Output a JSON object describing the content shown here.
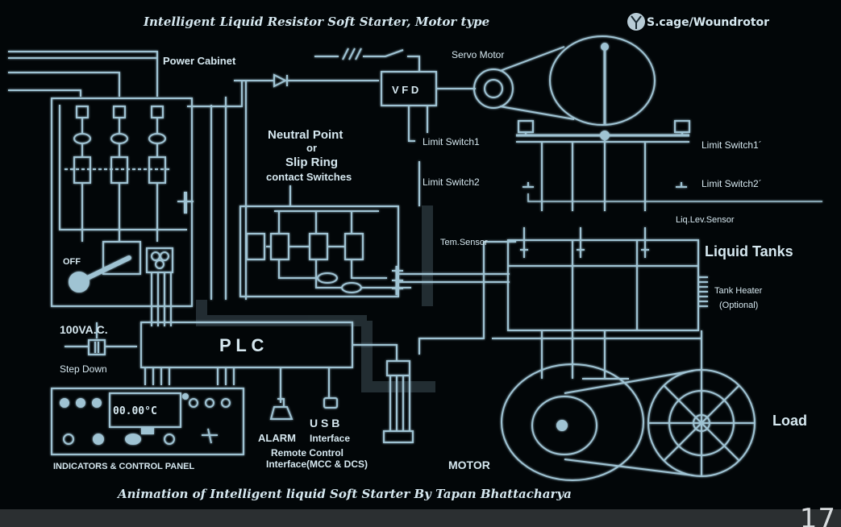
{
  "title": "Intelligent Liquid Resistor Soft Starter, Motor type",
  "motor_type_suffix": "S.cage/Woundrotor",
  "labels": {
    "power_cabinet": "Power Cabinet",
    "servo_motor": "Servo Motor",
    "vfd": "V F D",
    "neutral_point": "Neutral Point",
    "or": "or",
    "slip_ring": "Slip Ring",
    "contact_switches": "contact Switches",
    "limit_switch_1": "Limit Switch1",
    "limit_switch_2": "Limit Switch2",
    "limit_switch_1p": "Limit Switch1´",
    "limit_switch_2p": "Limit Switch2´",
    "liq_lev_sensor": "Liq.Lev.Sensor",
    "tem_sensor": "Tem.Sensor",
    "liquid_tanks": "Liquid Tanks",
    "tank_heater": "Tank Heater",
    "optional": "(Optional)",
    "off": "OFF",
    "vac": "100VA.C.",
    "step_down": "Step Down",
    "plc": "P L C",
    "display_value": "00.00°C",
    "alarm": "ALARM",
    "usb": "U S B",
    "interface": "Interface",
    "remote_control": "Remote Control",
    "remote_interface": "Interface(MCC & DCS)",
    "motor": "MOTOR",
    "load": "Load",
    "indicators_panel": "INDICATORS & CONTROL PANEL"
  },
  "footer": "Animation of Intelligent liquid Soft Starter By Tapan Bhattacharya",
  "page_number": "17",
  "colors": {
    "background": "#020608",
    "line": "#9fc3d3",
    "text": "#d6e8f0",
    "bar": "#2b2f31"
  }
}
